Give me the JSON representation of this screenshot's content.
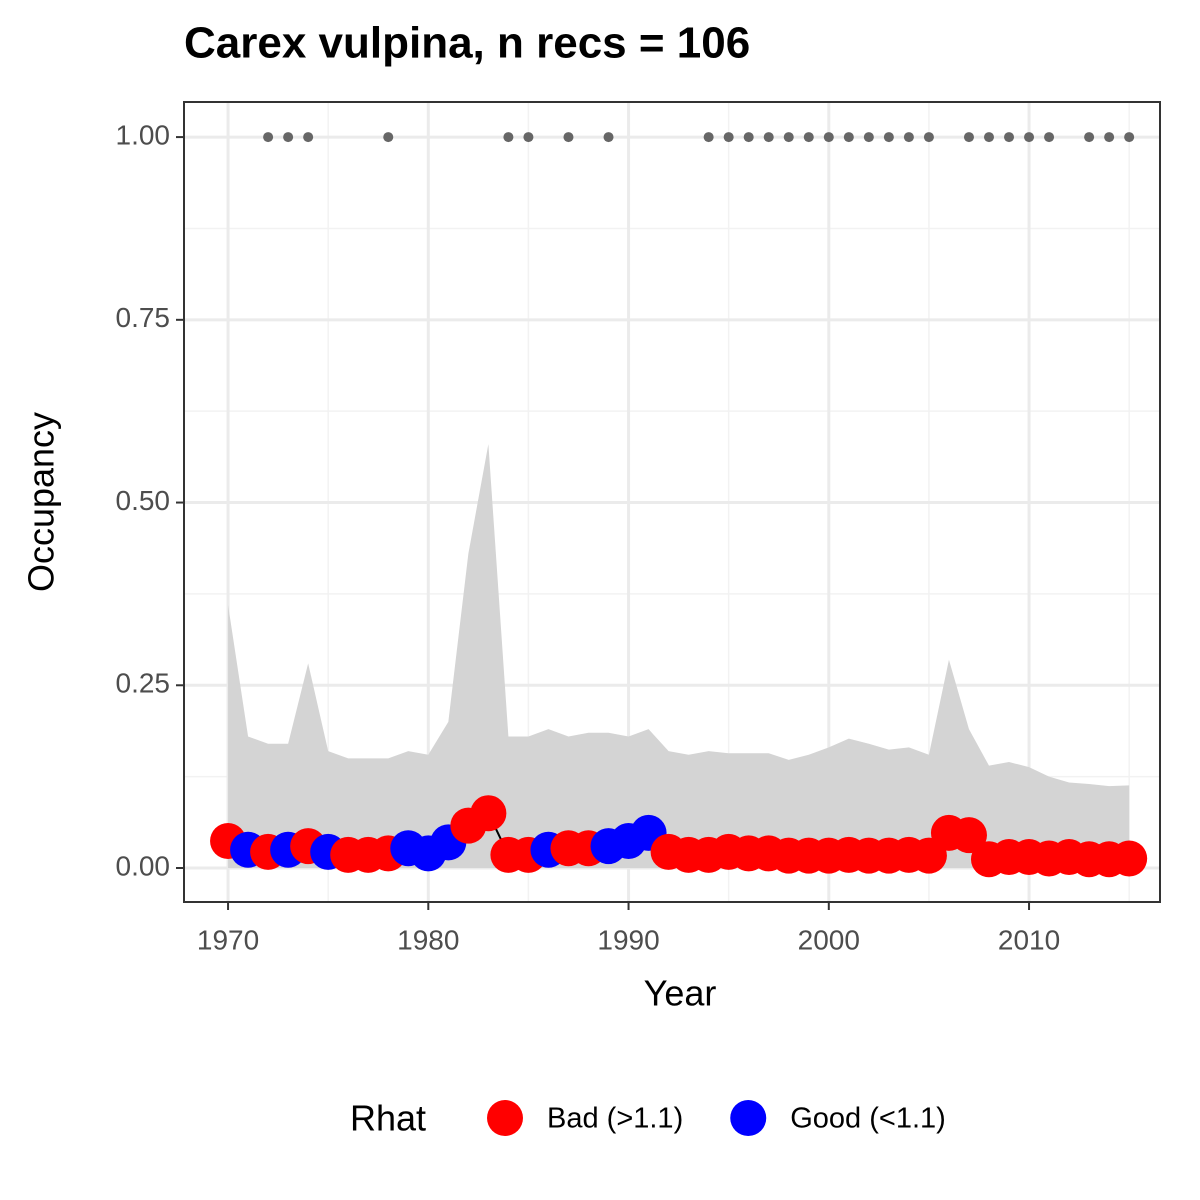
{
  "chart_data": {
    "type": "line",
    "title": "Carex vulpina, n recs = 106",
    "x_label": "Year",
    "y_label": "Occupancy",
    "xlim": [
      1967.8,
      2016.54
    ],
    "ylim": [
      -0.0465,
      1.048
    ],
    "xticks": [
      1970,
      1980,
      1990,
      2000,
      2010
    ],
    "xminor": [
      1975,
      1985,
      1995,
      2005,
      2015
    ],
    "yticks": [
      {
        "value": 0,
        "label": "0.00"
      },
      {
        "value": 0.25,
        "label": "0.25"
      },
      {
        "value": 0.5,
        "label": "0.50"
      },
      {
        "value": 0.75,
        "label": "0.75"
      },
      {
        "value": 1,
        "label": "1.00"
      }
    ],
    "yminor": [
      0.125,
      0.375,
      0.625,
      0.875
    ],
    "grid": true,
    "x": [
      1970,
      1971,
      1972,
      1973,
      1974,
      1975,
      1976,
      1977,
      1978,
      1979,
      1980,
      1981,
      1982,
      1983,
      1984,
      1985,
      1986,
      1987,
      1988,
      1989,
      1990,
      1991,
      1992,
      1993,
      1994,
      1995,
      1996,
      1997,
      1998,
      1999,
      2000,
      2001,
      2002,
      2003,
      2004,
      2005,
      2006,
      2007,
      2008,
      2009,
      2010,
      2011,
      2012,
      2013,
      2014,
      2015
    ],
    "values": [
      0.037,
      0.025,
      0.022,
      0.025,
      0.03,
      0.022,
      0.018,
      0.018,
      0.02,
      0.027,
      0.02,
      0.035,
      0.058,
      0.075,
      0.018,
      0.018,
      0.025,
      0.027,
      0.027,
      0.03,
      0.037,
      0.048,
      0.022,
      0.018,
      0.018,
      0.022,
      0.02,
      0.02,
      0.017,
      0.017,
      0.017,
      0.018,
      0.017,
      0.017,
      0.018,
      0.017,
      0.048,
      0.045,
      0.012,
      0.015,
      0.015,
      0.013,
      0.015,
      0.012,
      0.012,
      0.013
    ],
    "upper": [
      0.36,
      0.18,
      0.17,
      0.17,
      0.28,
      0.16,
      0.15,
      0.15,
      0.15,
      0.16,
      0.155,
      0.2,
      0.43,
      0.58,
      0.18,
      0.18,
      0.19,
      0.18,
      0.185,
      0.185,
      0.18,
      0.19,
      0.16,
      0.155,
      0.16,
      0.157,
      0.157,
      0.157,
      0.148,
      0.155,
      0.165,
      0.177,
      0.17,
      0.162,
      0.165,
      0.155,
      0.285,
      0.19,
      0.14,
      0.145,
      0.138,
      0.125,
      0.117,
      0.115,
      0.112,
      0.113
    ],
    "lower": [
      0,
      0,
      0,
      0,
      0,
      0,
      0,
      0,
      0,
      0,
      0,
      0,
      0,
      0,
      0,
      0,
      0,
      0,
      0,
      0,
      0,
      0,
      0,
      0,
      0,
      0,
      0,
      0,
      0,
      0,
      0,
      0,
      0,
      0,
      0,
      0,
      0,
      0,
      0,
      0,
      0,
      0,
      0,
      0,
      0,
      0
    ],
    "ribbon_color": "#d4d4d4",
    "rhat_group": [
      0,
      1,
      0,
      1,
      0,
      1,
      0,
      0,
      0,
      1,
      1,
      1,
      0,
      0,
      0,
      0,
      1,
      0,
      0,
      1,
      1,
      1,
      0,
      0,
      0,
      0,
      0,
      0,
      0,
      0,
      0,
      0,
      0,
      0,
      0,
      0,
      0,
      0,
      0,
      0,
      0,
      0,
      0,
      0,
      0,
      0
    ],
    "legend": {
      "title": "Rhat",
      "entries": [
        {
          "name": "Bad (>1.1)",
          "color": "#ff0000"
        },
        {
          "name": "Good (<1.1)",
          "color": "#0000ff"
        }
      ]
    },
    "records": {
      "color": "#666666",
      "x": [
        1972,
        1973,
        1974,
        1978,
        1984,
        1985,
        1987,
        1989,
        1994,
        1995,
        1996,
        1997,
        1998,
        1999,
        2000,
        2001,
        2002,
        2003,
        2004,
        2005,
        2007,
        2008,
        2009,
        2010,
        2011,
        2013,
        2014,
        2015
      ],
      "values": [
        1,
        1,
        1,
        1,
        1,
        1,
        1,
        1,
        1,
        1,
        1,
        1,
        1,
        1,
        1,
        1,
        1,
        1,
        1,
        1,
        1,
        1,
        1,
        1,
        1,
        1,
        1,
        1
      ]
    }
  }
}
